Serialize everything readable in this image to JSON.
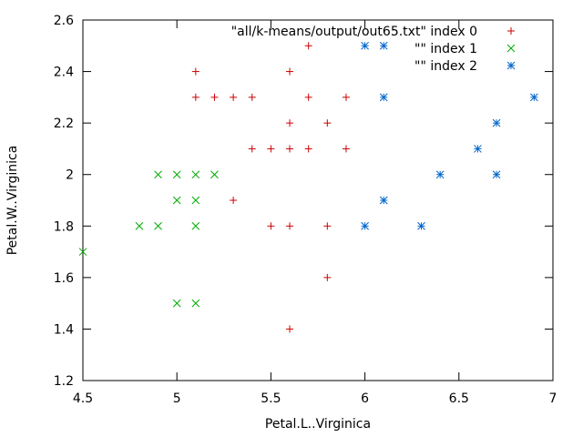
{
  "chart_data": {
    "type": "scatter",
    "xlabel": "Petal.L..Virginica",
    "ylabel": "Petal.W..Virginica",
    "xlim": [
      4.5,
      7
    ],
    "ylim": [
      1.2,
      2.6
    ],
    "x_ticks": [
      "4.5",
      "5",
      "5.5",
      "6",
      "6.5",
      "7"
    ],
    "y_ticks": [
      "1.2",
      "1.4",
      "1.6",
      "1.8",
      "2",
      "2.2",
      "2.4",
      "2.6"
    ],
    "grid": false,
    "legend_position": "top-right",
    "series": [
      {
        "name": "\"all/k-means/output/out65.txt\" index 0",
        "marker": "plus",
        "color": "#cc0000",
        "points": [
          [
            5.7,
            2.5
          ],
          [
            5.1,
            2.4
          ],
          [
            5.6,
            2.4
          ],
          [
            5.1,
            2.3
          ],
          [
            5.2,
            2.3
          ],
          [
            5.3,
            2.3
          ],
          [
            5.4,
            2.3
          ],
          [
            5.7,
            2.3
          ],
          [
            5.9,
            2.3
          ],
          [
            5.6,
            2.2
          ],
          [
            5.8,
            2.2
          ],
          [
            5.4,
            2.1
          ],
          [
            5.5,
            2.1
          ],
          [
            5.6,
            2.1
          ],
          [
            5.7,
            2.1
          ],
          [
            5.9,
            2.1
          ],
          [
            5.3,
            1.9
          ],
          [
            5.5,
            1.8
          ],
          [
            5.6,
            1.8
          ],
          [
            5.8,
            1.8
          ],
          [
            5.8,
            1.6
          ],
          [
            5.6,
            1.4
          ]
        ]
      },
      {
        "name": "\"\" index 1",
        "marker": "cross",
        "color": "#00aa00",
        "points": [
          [
            4.9,
            2.0
          ],
          [
            5.0,
            2.0
          ],
          [
            5.1,
            2.0
          ],
          [
            5.2,
            2.0
          ],
          [
            5.0,
            1.9
          ],
          [
            5.1,
            1.9
          ],
          [
            4.8,
            1.8
          ],
          [
            4.9,
            1.8
          ],
          [
            5.1,
            1.8
          ],
          [
            4.5,
            1.7
          ],
          [
            5.0,
            1.5
          ],
          [
            5.1,
            1.5
          ]
        ]
      },
      {
        "name": "\"\" index 2",
        "marker": "star",
        "color": "#0066cc",
        "points": [
          [
            6.0,
            2.5
          ],
          [
            6.1,
            2.5
          ],
          [
            6.1,
            2.3
          ],
          [
            6.9,
            2.3
          ],
          [
            6.7,
            2.2
          ],
          [
            6.6,
            2.1
          ],
          [
            6.4,
            2.0
          ],
          [
            6.7,
            2.0
          ],
          [
            6.1,
            1.9
          ],
          [
            6.0,
            1.8
          ],
          [
            6.3,
            1.8
          ]
        ]
      }
    ]
  }
}
